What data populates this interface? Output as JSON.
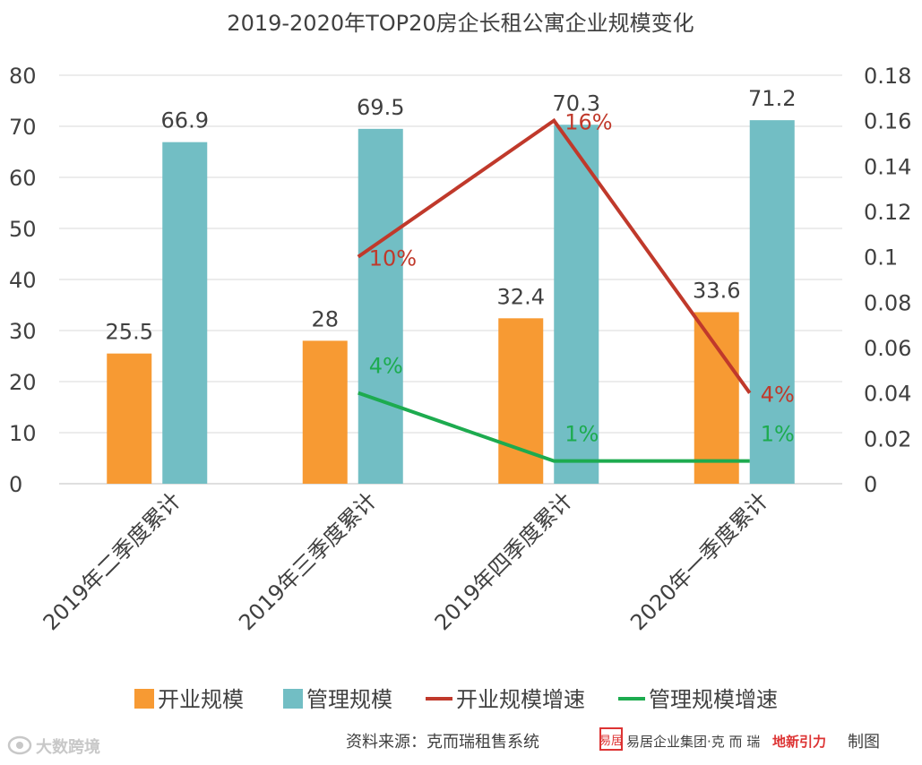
{
  "chart_data": {
    "type": "bar",
    "title": "2019-2020年TOP20房企长租公寓企业规模变化",
    "categories": [
      "2019年二季度累计",
      "2019年三季度累计",
      "2019年四季度累计",
      "2020年一季度累计"
    ],
    "series": [
      {
        "name": "开业规模",
        "kind": "bar",
        "axis": "left",
        "color": "#F79A33",
        "values": [
          25.5,
          28,
          32.4,
          33.6
        ],
        "labels": [
          "25.5",
          "28",
          "32.4",
          "33.6"
        ]
      },
      {
        "name": "管理规模",
        "kind": "bar",
        "axis": "left",
        "color": "#72BEC4",
        "values": [
          66.9,
          69.5,
          70.3,
          71.2
        ],
        "labels": [
          "66.9",
          "69.5",
          "70.3",
          "71.2"
        ]
      },
      {
        "name": "开业规模增速",
        "kind": "line",
        "axis": "right",
        "color": "#C0392B",
        "values": [
          null,
          0.1,
          0.16,
          0.04
        ],
        "labels": [
          "",
          "10%",
          "16%",
          "4%"
        ]
      },
      {
        "name": "管理规模增速",
        "kind": "line",
        "axis": "right",
        "color": "#1DAB4F",
        "values": [
          null,
          0.04,
          0.01,
          0.01
        ],
        "labels": [
          "",
          "4%",
          "1%",
          "1%"
        ]
      }
    ],
    "y_left": {
      "min": 0,
      "max": 80,
      "ticks": [
        "0",
        "10",
        "20",
        "30",
        "40",
        "50",
        "60",
        "70",
        "80"
      ]
    },
    "y_right": {
      "min": 0,
      "max": 0.18,
      "ticks": [
        "0",
        "0.02",
        "0.04",
        "0.06",
        "0.08",
        "0.1",
        "0.12",
        "0.14",
        "0.16",
        "0.18"
      ]
    },
    "grid": true,
    "legend": "bottom"
  },
  "footer": {
    "source": "资料来源：克而瑞租售系统",
    "seal": "易居",
    "credit_group": "易居企业集团·克 而 瑞",
    "credit_brand": "地新引力",
    "credit_suffix": "制图",
    "watermark": "大数跨境",
    "watermark_icon": "weibo-eye-icon"
  }
}
